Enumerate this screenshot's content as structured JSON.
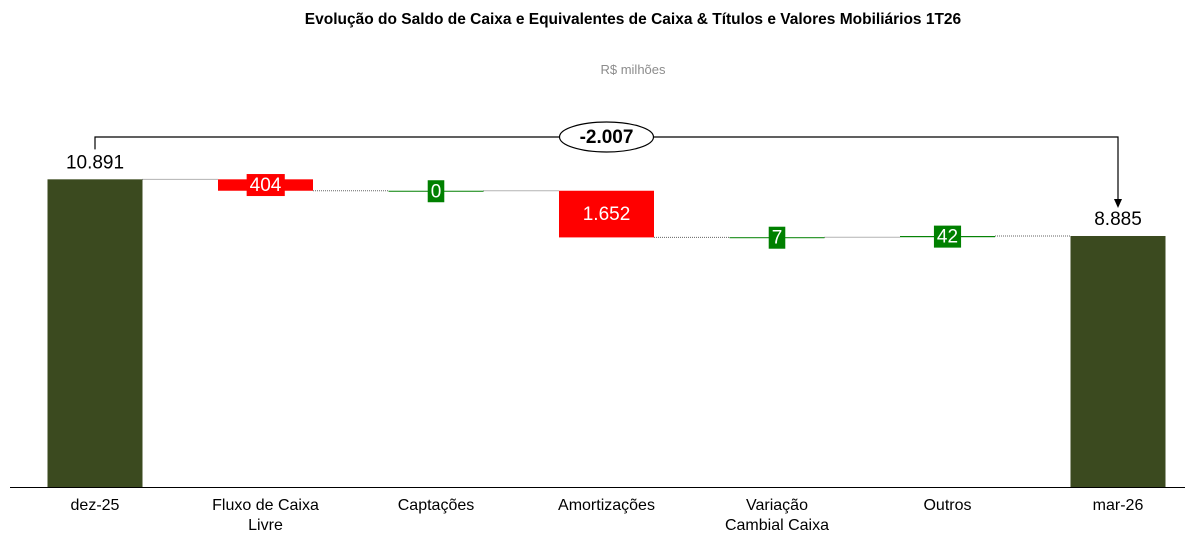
{
  "chart_data": {
    "type": "waterfall",
    "title": "Evolução do Saldo de Caixa e Equivalentes de Caixa & Títulos e Valores Mobiliários 1T26",
    "subtitle": "R$ milhões",
    "categories": [
      "dez-25",
      "Fluxo de Caixa Livre",
      "Captações",
      "Amortizações",
      "Variação Cambial Caixa",
      "Outros",
      "mar-26"
    ],
    "values": [
      10891,
      -404,
      0,
      -1652,
      7,
      42,
      8885
    ],
    "value_labels": [
      "10.891",
      "404",
      "0",
      "1.652",
      "7",
      "42",
      "8.885"
    ],
    "measures": [
      "total",
      "relative",
      "relative",
      "relative",
      "relative",
      "relative",
      "total"
    ],
    "colors": {
      "total": "#3b4a1f",
      "increase": "#008000",
      "decrease": "#ff0000"
    },
    "annotation": "-2.007",
    "ylim": [
      0,
      12000
    ]
  }
}
